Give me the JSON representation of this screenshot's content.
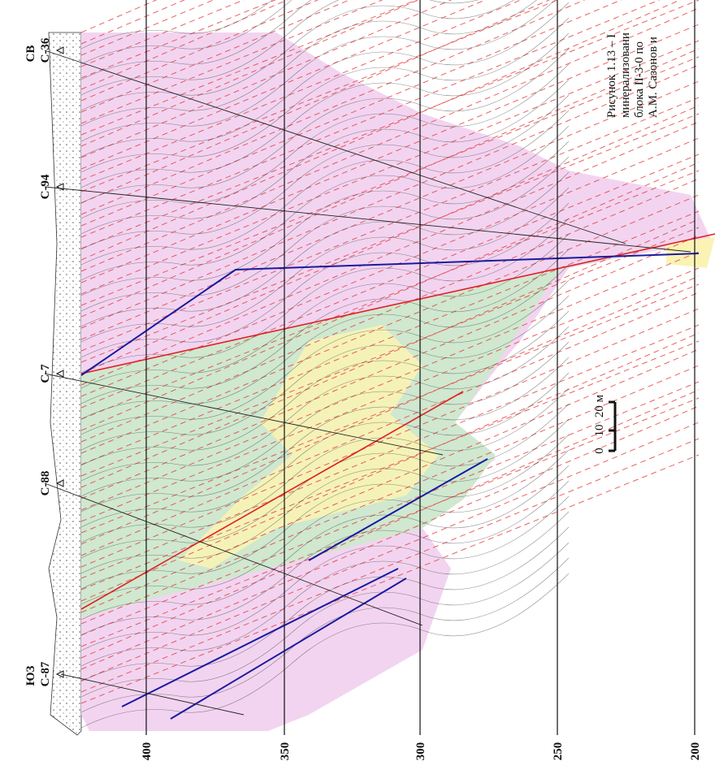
{
  "header": {
    "left_direction": "ЮЗ",
    "right_direction": "СВ"
  },
  "wells": [
    {
      "label": "С-36"
    },
    {
      "label": "С-94"
    },
    {
      "label": "С-7"
    },
    {
      "label": "С-88"
    },
    {
      "label": "С-87"
    }
  ],
  "elevations": [
    "400",
    "350",
    "300",
    "250",
    "200"
  ],
  "scale": {
    "ticks": [
      "0",
      "10",
      "20 м"
    ]
  },
  "caption": {
    "lines": [
      "Рисунок 1.13 – I",
      "минерализовани",
      "блока II-3-0 по",
      "А.М. Сазонов и"
    ]
  }
}
